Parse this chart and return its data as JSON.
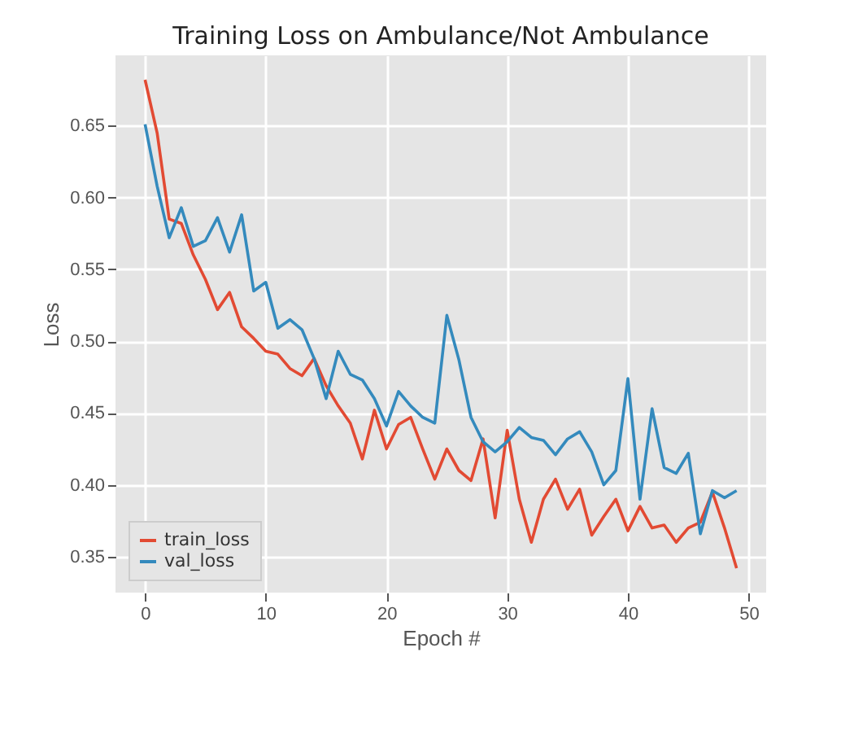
{
  "chart_data": {
    "type": "line",
    "title": "Training Loss on Ambulance/Not Ambulance",
    "xlabel": "Epoch #",
    "ylabel": "Loss",
    "x": [
      0,
      1,
      2,
      3,
      4,
      5,
      6,
      7,
      8,
      9,
      10,
      11,
      12,
      13,
      14,
      15,
      16,
      17,
      18,
      19,
      20,
      21,
      22,
      23,
      24,
      25,
      26,
      27,
      28,
      29,
      30,
      31,
      32,
      33,
      34,
      35,
      36,
      37,
      38,
      39,
      40,
      41,
      42,
      43,
      44,
      45,
      46,
      47,
      48,
      49
    ],
    "series": [
      {
        "name": "train_loss",
        "color": "#e24a33",
        "values": [
          0.682,
          0.645,
          0.585,
          0.582,
          0.56,
          0.543,
          0.522,
          0.534,
          0.51,
          0.502,
          0.493,
          0.491,
          0.481,
          0.476,
          0.488,
          0.469,
          0.455,
          0.443,
          0.418,
          0.452,
          0.425,
          0.442,
          0.447,
          0.425,
          0.404,
          0.425,
          0.41,
          0.403,
          0.432,
          0.377,
          0.438,
          0.39,
          0.36,
          0.39,
          0.404,
          0.383,
          0.397,
          0.365,
          0.378,
          0.39,
          0.368,
          0.385,
          0.37,
          0.372,
          0.36,
          0.37,
          0.374,
          0.395,
          0.37,
          0.342
        ]
      },
      {
        "name": "val_loss",
        "color": "#348abd",
        "values": [
          0.651,
          0.608,
          0.572,
          0.593,
          0.566,
          0.57,
          0.586,
          0.562,
          0.588,
          0.535,
          0.541,
          0.509,
          0.515,
          0.508,
          0.488,
          0.46,
          0.493,
          0.477,
          0.473,
          0.46,
          0.441,
          0.465,
          0.455,
          0.447,
          0.443,
          0.518,
          0.487,
          0.447,
          0.43,
          0.423,
          0.43,
          0.44,
          0.433,
          0.431,
          0.421,
          0.432,
          0.437,
          0.423,
          0.4,
          0.41,
          0.474,
          0.39,
          0.453,
          0.412,
          0.408,
          0.422,
          0.366,
          0.396,
          0.391,
          0.396
        ]
      }
    ],
    "xlim": [
      -2.45,
      51.45
    ],
    "xticks": [
      0,
      10,
      20,
      30,
      40,
      50
    ],
    "ylim": [
      0.325,
      0.699
    ],
    "yticks": [
      0.35,
      {
        "value": 0.4,
        "label": "0.40"
      },
      0.45,
      {
        "value": 0.5,
        "label": "0.50"
      },
      0.55,
      {
        "value": 0.6,
        "label": "0.60"
      },
      0.65
    ],
    "grid": true,
    "legend": "bottom left"
  }
}
